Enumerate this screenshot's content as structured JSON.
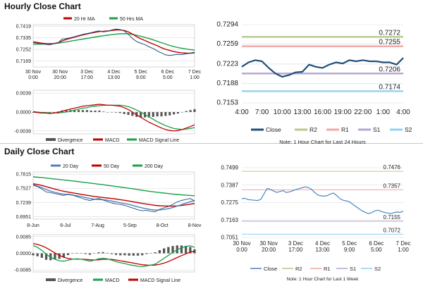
{
  "sections": {
    "hourly_title": "Hourly Close Chart",
    "daily_title": "Daily Close Chart"
  },
  "colors": {
    "ma_short": "#c00000",
    "ma_long": "#1aa04a",
    "ma_mid": "#4f81bd",
    "price": "#1f4e79",
    "price_light": "#4a86c5",
    "r2": "#b7c98a",
    "r1": "#f2a6a6",
    "s1": "#b7a3d6",
    "s2": "#8fd0f0",
    "divergence": "#555555",
    "grid": "#d9d9d9"
  },
  "chart_data": [
    {
      "id": "hourly_main",
      "type": "line",
      "legend": [
        "20 Hr MA",
        "50 Hrs MA"
      ],
      "x_ticks": [
        "30 Nov\n0:00",
        "30 Nov\n20:00",
        "3 Dec\n17:00",
        "4 Dec\n13:00",
        "5 Dec\n9:00",
        "6 Dec\n5:00",
        "7 Dec\n1:00"
      ],
      "y_ticks": [
        "0.7419",
        "0.7335",
        "0.7252",
        "0.7169"
      ],
      "ylim": [
        0.7125,
        0.743
      ],
      "series": [
        {
          "name": "Close",
          "color": "price",
          "values": [
            0.73,
            0.7296,
            0.729,
            0.7288,
            0.7284,
            0.7292,
            0.7298,
            0.7326,
            0.733,
            0.7336,
            0.7343,
            0.7352,
            0.736,
            0.7366,
            0.7372,
            0.738,
            0.7385,
            0.7378,
            0.7382,
            0.7392,
            0.7398,
            0.7395,
            0.7384,
            0.736,
            0.733,
            0.7308,
            0.7296,
            0.7286,
            0.727,
            0.7258,
            0.724,
            0.7226,
            0.7212,
            0.7208,
            0.7212,
            0.7216,
            0.7214,
            0.722,
            0.7224,
            0.7232
          ]
        },
        {
          "name": "20 Hr MA",
          "color": "ma_short",
          "values": [
            0.7306,
            0.7302,
            0.7297,
            0.7294,
            0.7292,
            0.7294,
            0.73,
            0.7312,
            0.7324,
            0.7332,
            0.734,
            0.7348,
            0.7356,
            0.7363,
            0.7369,
            0.7375,
            0.738,
            0.7382,
            0.7384,
            0.7388,
            0.7392,
            0.7392,
            0.7388,
            0.7378,
            0.7362,
            0.7344,
            0.7328,
            0.7316,
            0.7302,
            0.729,
            0.7278,
            0.7264,
            0.7252,
            0.7244,
            0.7236,
            0.723,
            0.7226,
            0.7224,
            0.7224,
            0.7226
          ]
        },
        {
          "name": "50 Hrs MA",
          "color": "ma_long",
          "values": [
            0.7288,
            0.7289,
            0.729,
            0.7291,
            0.7292,
            0.7294,
            0.7297,
            0.7301,
            0.7306,
            0.7311,
            0.7316,
            0.7321,
            0.7326,
            0.7331,
            0.7336,
            0.7341,
            0.7346,
            0.735,
            0.7354,
            0.7358,
            0.7362,
            0.7364,
            0.7365,
            0.7364,
            0.736,
            0.7354,
            0.7346,
            0.7338,
            0.733,
            0.732,
            0.731,
            0.73,
            0.729,
            0.728,
            0.7272,
            0.7265,
            0.7259,
            0.7254,
            0.725,
            0.7247
          ]
        }
      ]
    },
    {
      "id": "hourly_macd",
      "type": "line",
      "legend": [
        "Divergence",
        "MACD",
        "MACD Signal Line"
      ],
      "y_ticks": [
        "0.0039",
        "0.0000",
        "-0.0039"
      ],
      "ylim": [
        -0.0045,
        0.0045
      ],
      "series": [
        {
          "name": "MACD",
          "color": "ma_short",
          "values": [
            0.0,
            -0.0001,
            -0.0002,
            -0.0002,
            -0.0003,
            -0.0002,
            -0.0001,
            0.0002,
            0.0004,
            0.0006,
            0.0008,
            0.001,
            0.0012,
            0.0013,
            0.0014,
            0.0015,
            0.0016,
            0.0015,
            0.0014,
            0.0014,
            0.0013,
            0.0012,
            0.0009,
            0.0005,
            0.0,
            -0.0006,
            -0.0011,
            -0.0016,
            -0.0021,
            -0.0025,
            -0.0029,
            -0.0033,
            -0.0036,
            -0.0038,
            -0.0039,
            -0.0038,
            -0.0036,
            -0.0033,
            -0.003,
            -0.0026
          ]
        },
        {
          "name": "MACD Signal Line",
          "color": "ma_long",
          "values": [
            0.0001,
            0.0,
            -0.0001,
            -0.0001,
            -0.0002,
            -0.0002,
            -0.0002,
            -0.0001,
            0.0,
            0.0002,
            0.0004,
            0.0006,
            0.0008,
            0.0009,
            0.0011,
            0.0012,
            0.0013,
            0.0014,
            0.0014,
            0.0014,
            0.0014,
            0.0014,
            0.0013,
            0.0011,
            0.0008,
            0.0004,
            0.0,
            -0.0005,
            -0.001,
            -0.0015,
            -0.002,
            -0.0024,
            -0.0028,
            -0.0031,
            -0.0034,
            -0.0035,
            -0.0036,
            -0.0035,
            -0.0034,
            -0.0032
          ]
        },
        {
          "name": "Divergence",
          "color": "divergence",
          "values": [
            -0.0001,
            -0.0001,
            -0.0001,
            -0.0001,
            -0.0001,
            0.0,
            0.0001,
            0.0003,
            0.0004,
            0.0004,
            0.0004,
            0.0004,
            0.0004,
            0.0004,
            0.0003,
            0.0003,
            0.0003,
            0.0001,
            0.0,
            0.0,
            -0.0001,
            -0.0002,
            -0.0004,
            -0.0006,
            -0.0008,
            -0.001,
            -0.0011,
            -0.0011,
            -0.0011,
            -0.001,
            -0.0009,
            -0.0009,
            -0.0008,
            -0.0007,
            -0.0005,
            -0.0003,
            0.0,
            0.0002,
            0.0004,
            0.0006
          ]
        }
      ]
    },
    {
      "id": "hourly_pivot",
      "type": "line",
      "title": "",
      "x_ticks": [
        "4:00",
        "7:00",
        "10:00",
        "13:00",
        "16:00",
        "19:00",
        "22:00",
        "1:00",
        "4:00"
      ],
      "y_ticks": [
        "0.7294",
        "0.7259",
        "0.7223",
        "0.7188",
        "0.7153"
      ],
      "ylim": [
        0.7153,
        0.7294
      ],
      "levels": {
        "R2": 0.7272,
        "R1": 0.7255,
        "S1": 0.7206,
        "S2": 0.7174
      },
      "legend": [
        "Close",
        "R2",
        "R1",
        "S1",
        "S2"
      ],
      "note": "Note: 1 Hour Chart for Last 24 Hours",
      "series": [
        {
          "name": "Close",
          "color": "price",
          "values": [
            0.7218,
            0.7226,
            0.723,
            0.7228,
            0.7216,
            0.7206,
            0.72,
            0.7203,
            0.7208,
            0.7209,
            0.7222,
            0.7218,
            0.7216,
            0.7222,
            0.7226,
            0.7224,
            0.723,
            0.7228,
            0.723,
            0.7228,
            0.7228,
            0.7226,
            0.7226,
            0.7222,
            0.7234
          ]
        }
      ]
    },
    {
      "id": "daily_main",
      "type": "line",
      "legend": [
        "20 Day",
        "50 Day",
        "200 Day"
      ],
      "x_ticks": [
        "8-Jun",
        "6-Jul",
        "7-Aug",
        "5-Sep",
        "8-Oct",
        "8-Nov"
      ],
      "y_ticks": [
        "0.7815",
        "0.7527",
        "0.7239",
        "0.6951"
      ],
      "ylim": [
        0.69,
        0.786
      ],
      "series": [
        {
          "name": "Close",
          "color": "price",
          "values": [
            0.759,
            0.756,
            0.751,
            0.745,
            0.744,
            0.742,
            0.74,
            0.738,
            0.741,
            0.739,
            0.736,
            0.733,
            0.73,
            0.728,
            0.73,
            0.732,
            0.729,
            0.726,
            0.723,
            0.721,
            0.72,
            0.718,
            0.715,
            0.712,
            0.709,
            0.707,
            0.708,
            0.706,
            0.705,
            0.71,
            0.713,
            0.716,
            0.72,
            0.725,
            0.728,
            0.73,
            0.732,
            0.727
          ]
        },
        {
          "name": "20 Day",
          "color": "ma_mid",
          "values": [
            0.76,
            0.757,
            0.754,
            0.75,
            0.747,
            0.7445,
            0.7425,
            0.741,
            0.74,
            0.739,
            0.7375,
            0.7358,
            0.734,
            0.732,
            0.7305,
            0.73,
            0.7295,
            0.7285,
            0.7268,
            0.725,
            0.7232,
            0.7215,
            0.7198,
            0.7175,
            0.715,
            0.7128,
            0.711,
            0.7095,
            0.7085,
            0.7088,
            0.7098,
            0.7112,
            0.7135,
            0.7165,
            0.7195,
            0.7225,
            0.7255,
            0.7275
          ]
        },
        {
          "name": "50 Day",
          "color": "ma_short",
          "values": [
            0.762,
            0.7605,
            0.7585,
            0.756,
            0.7535,
            0.751,
            0.7488,
            0.7468,
            0.745,
            0.7435,
            0.742,
            0.7405,
            0.739,
            0.7375,
            0.7362,
            0.735,
            0.734,
            0.733,
            0.732,
            0.7308,
            0.7295,
            0.7282,
            0.7268,
            0.7252,
            0.7236,
            0.722,
            0.7205,
            0.7192,
            0.718,
            0.7172,
            0.7168,
            0.7165,
            0.7165,
            0.717,
            0.7178,
            0.719,
            0.7205,
            0.7215
          ]
        },
        {
          "name": "200 Day",
          "color": "ma_long",
          "values": [
            0.776,
            0.7752,
            0.7744,
            0.7735,
            0.7726,
            0.7716,
            0.7706,
            0.7696,
            0.7686,
            0.7676,
            0.7666,
            0.7655,
            0.7644,
            0.7633,
            0.7622,
            0.7611,
            0.76,
            0.7588,
            0.7576,
            0.7564,
            0.7552,
            0.754,
            0.7527,
            0.7514,
            0.7501,
            0.7488,
            0.7475,
            0.7462,
            0.745,
            0.744,
            0.743,
            0.742,
            0.741,
            0.7402,
            0.7395,
            0.7388,
            0.7382,
            0.7376
          ]
        }
      ]
    },
    {
      "id": "daily_macd",
      "type": "line",
      "legend": [
        "Divergence",
        "MACD",
        "MACD Signal Line"
      ],
      "y_ticks": [
        "0.0085",
        "0.0000",
        "-0.0085"
      ],
      "ylim": [
        -0.0095,
        0.0095
      ],
      "series": [
        {
          "name": "MACD",
          "color": "ma_long",
          "values": [
            0.004,
            0.003,
            0.0015,
            -0.0005,
            -0.002,
            -0.003,
            -0.0038,
            -0.004,
            -0.0035,
            -0.003,
            -0.0028,
            -0.003,
            -0.0035,
            -0.004,
            -0.0035,
            -0.0028,
            -0.0025,
            -0.0028,
            -0.0035,
            -0.0042,
            -0.0048,
            -0.0052,
            -0.0058,
            -0.0062,
            -0.0066,
            -0.0068,
            -0.0064,
            -0.006,
            -0.0055,
            -0.004,
            -0.0025,
            -0.001,
            0.0005,
            0.0018,
            0.0028,
            0.0035,
            0.0038,
            0.003
          ]
        },
        {
          "name": "MACD Signal Line",
          "color": "ma_short",
          "values": [
            0.005,
            0.0045,
            0.0038,
            0.0028,
            0.0015,
            0.0002,
            -0.001,
            -0.002,
            -0.0026,
            -0.0029,
            -0.003,
            -0.003,
            -0.0031,
            -0.0033,
            -0.0034,
            -0.0033,
            -0.0031,
            -0.003,
            -0.0031,
            -0.0034,
            -0.0038,
            -0.0042,
            -0.0046,
            -0.005,
            -0.0054,
            -0.0058,
            -0.006,
            -0.0061,
            -0.006,
            -0.0056,
            -0.005,
            -0.0042,
            -0.0032,
            -0.0022,
            -0.0012,
            -0.0003,
            0.0006,
            0.001
          ]
        },
        {
          "name": "Divergence",
          "color": "divergence",
          "values": [
            -0.001,
            -0.0015,
            -0.0023,
            -0.0033,
            -0.0035,
            -0.0032,
            -0.0028,
            -0.002,
            -0.0009,
            -0.0001,
            0.0002,
            0.0,
            -0.0004,
            -0.0007,
            -0.0001,
            0.0005,
            0.0006,
            0.0002,
            -0.0004,
            -0.0008,
            -0.001,
            -0.001,
            -0.0012,
            -0.0012,
            -0.0012,
            -0.001,
            -0.0004,
            0.0001,
            0.0005,
            0.0016,
            0.0025,
            0.0032,
            0.0037,
            0.004,
            0.004,
            0.0038,
            0.0032,
            0.002
          ]
        }
      ]
    },
    {
      "id": "daily_pivot",
      "type": "line",
      "x_ticks": [
        "30 Nov\n0:00",
        "30 Nov\n20:00",
        "3 Dec\n17:00",
        "4 Dec\n13:00",
        "5 Dec\n9:00",
        "6 Dec\n5:00",
        "7 Dec\n1:00"
      ],
      "y_ticks": [
        "0.7499",
        "0.7387",
        "0.7275",
        "0.7163",
        "0.7051"
      ],
      "ylim": [
        0.7051,
        0.7499
      ],
      "levels": {
        "R2": 0.7476,
        "R1": 0.7357,
        "S1": 0.7155,
        "S2": 0.7072
      },
      "legend": [
        "Close",
        "R2",
        "R1",
        "S1",
        "S2"
      ],
      "note": "Note: 1 Hour Chart for Last 1 Week",
      "series": [
        {
          "name": "Close",
          "color": "price_light",
          "values": [
            0.73,
            0.7302,
            0.7294,
            0.7292,
            0.729,
            0.7288,
            0.7296,
            0.733,
            0.7366,
            0.736,
            0.735,
            0.734,
            0.7346,
            0.7352,
            0.734,
            0.7344,
            0.735,
            0.7358,
            0.7364,
            0.737,
            0.7376,
            0.7372,
            0.736,
            0.734,
            0.7324,
            0.7318,
            0.7316,
            0.732,
            0.733,
            0.7336,
            0.732,
            0.73,
            0.729,
            0.7286,
            0.728,
            0.7264,
            0.725,
            0.7236,
            0.7222,
            0.7212,
            0.7204,
            0.721,
            0.7222,
            0.7226,
            0.7218,
            0.7212,
            0.7208,
            0.7204,
            0.721,
            0.7214,
            0.7212,
            0.722
          ]
        }
      ]
    }
  ]
}
